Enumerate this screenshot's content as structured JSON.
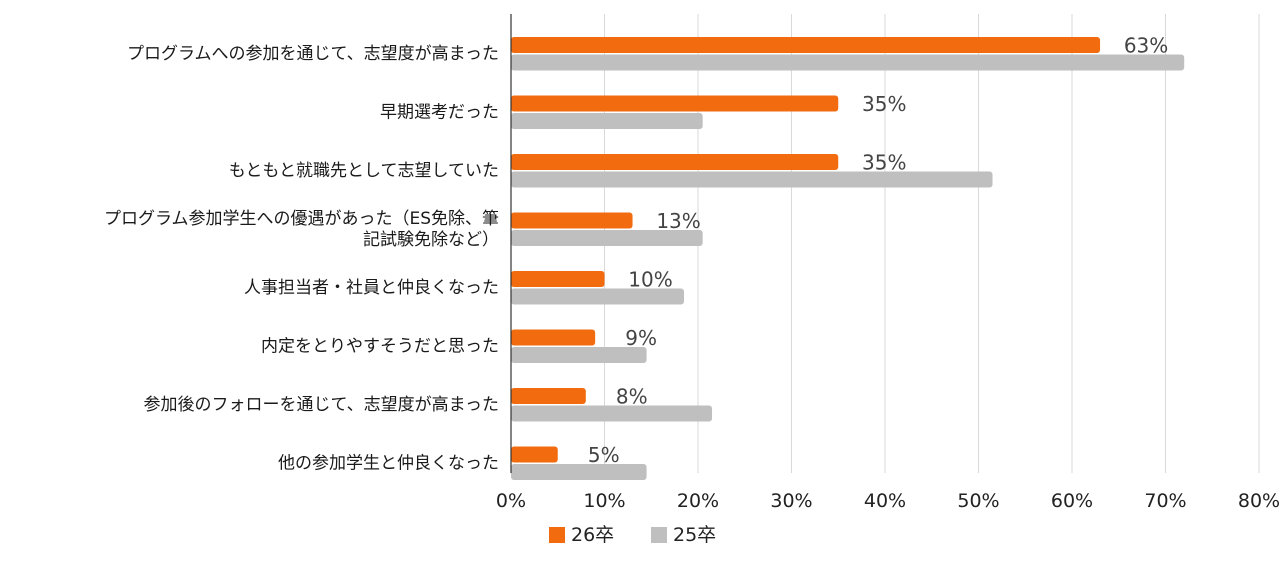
{
  "chart_data": {
    "type": "bar",
    "orientation": "horizontal",
    "categories": [
      [
        "プログラムへの参加を通じて、志望度が高まった"
      ],
      [
        "早期選考だった"
      ],
      [
        "もともと就職先として志望していた"
      ],
      [
        "プログラム参加学生への優遇があった（ES免除、筆",
        "記試験免除など）"
      ],
      [
        "人事担当者・社員と仲良くなった"
      ],
      [
        "内定をとりやすそうだと思った"
      ],
      [
        "参加後のフォローを通じて、志望度が高まった"
      ],
      [
        "他の参加学生と仲良くなった"
      ]
    ],
    "series": [
      {
        "name": "26卒",
        "color": "#F26B0F",
        "values": [
          63,
          35,
          35,
          13,
          10,
          9,
          8,
          5
        ],
        "labels": [
          "63%",
          "35%",
          "35%",
          "13%",
          "10%",
          "9%",
          "8%",
          "5%"
        ]
      },
      {
        "name": "25卒",
        "color": "#BFBFBF",
        "values": [
          72,
          20.5,
          51.5,
          20.5,
          18.5,
          14.5,
          21.5,
          14.5
        ]
      }
    ],
    "x_ticks": [
      "0%",
      "10%",
      "20%",
      "30%",
      "40%",
      "50%",
      "60%",
      "70%",
      "80%"
    ],
    "xlim": [
      0,
      80
    ],
    "grid": true,
    "legend": "bottom-center",
    "title": "",
    "xlabel": "",
    "ylabel": ""
  }
}
